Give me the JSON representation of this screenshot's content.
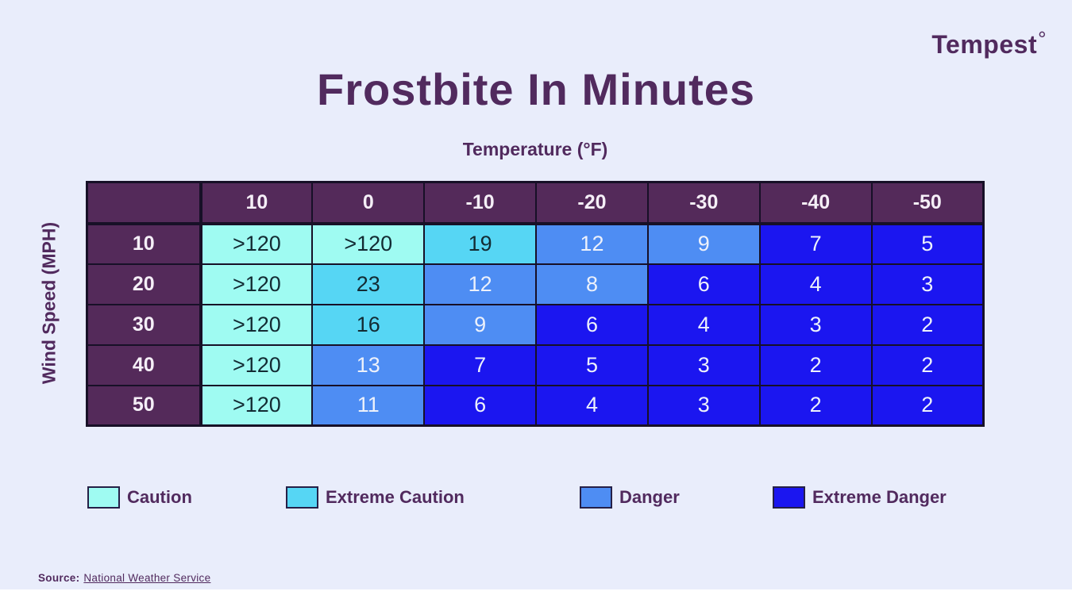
{
  "brand": {
    "logo_text": "Tempest",
    "logo_degree": "°"
  },
  "title": "Frostbite In Minutes",
  "source": {
    "prefix": "Source:",
    "link_text": "National Weather Service"
  },
  "colors": {
    "background": "#E9EDFB",
    "header_purple": "#542A5A",
    "title_purple": "#512A5E",
    "grid_line": "#171027",
    "bottom_strip": "#FFFFFF"
  },
  "chart_data": {
    "type": "heatmap",
    "title": "Frostbite In Minutes",
    "xlabel": "Temperature (°F)",
    "ylabel": "Wind Speed (MPH)",
    "columns": [
      "10",
      "0",
      "-10",
      "-20",
      "-30",
      "-40",
      "-50"
    ],
    "rows": [
      "10",
      "20",
      "30",
      "40",
      "50"
    ],
    "values": [
      [
        ">120",
        ">120",
        "19",
        "12",
        "9",
        "7",
        "5"
      ],
      [
        ">120",
        "23",
        "12",
        "8",
        "6",
        "4",
        "3"
      ],
      [
        ">120",
        "16",
        "9",
        "6",
        "4",
        "3",
        "2"
      ],
      [
        ">120",
        "13",
        "7",
        "5",
        "3",
        "2",
        "2"
      ],
      [
        ">120",
        "11",
        "6",
        "4",
        "3",
        "2",
        "2"
      ]
    ],
    "categories_map": [
      [
        "caution",
        "caution",
        "extreme_caution",
        "danger",
        "danger",
        "extreme_danger",
        "extreme_danger"
      ],
      [
        "caution",
        "extreme_caution",
        "danger",
        "danger",
        "extreme_danger",
        "extreme_danger",
        "extreme_danger"
      ],
      [
        "caution",
        "extreme_caution",
        "danger",
        "extreme_danger",
        "extreme_danger",
        "extreme_danger",
        "extreme_danger"
      ],
      [
        "caution",
        "danger",
        "extreme_danger",
        "extreme_danger",
        "extreme_danger",
        "extreme_danger",
        "extreme_danger"
      ],
      [
        "caution",
        "danger",
        "extreme_danger",
        "extreme_danger",
        "extreme_danger",
        "extreme_danger",
        "extreme_danger"
      ]
    ],
    "legend": [
      {
        "key": "caution",
        "label": "Caution",
        "color": "#9FFBF2",
        "text_color": "#132B33"
      },
      {
        "key": "extreme_caution",
        "label": "Extreme Caution",
        "color": "#56D6F4",
        "text_color": "#132B33"
      },
      {
        "key": "danger",
        "label": "Danger",
        "color": "#4E8DF3",
        "text_color": "#EDF1FB"
      },
      {
        "key": "extreme_danger",
        "label": "Extreme Danger",
        "color": "#1B16F0",
        "text_color": "#EDF1FB"
      }
    ],
    "legend_position": "bottom",
    "grid": true
  }
}
